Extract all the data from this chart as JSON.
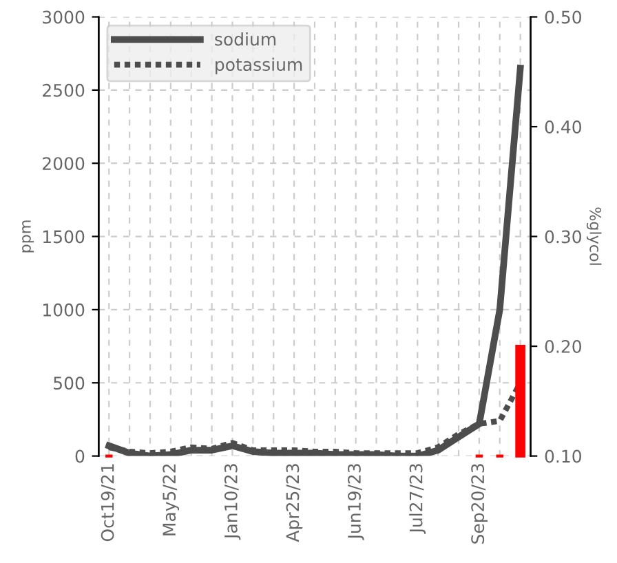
{
  "chart_data": {
    "type": "line",
    "ylabel": "ppm",
    "y2label": "%glycol",
    "categories": [
      "Oct19/21",
      null,
      null,
      "May5/22",
      null,
      null,
      "Jan10/23",
      null,
      null,
      "Apr25/23",
      null,
      null,
      "Jun19/23",
      null,
      null,
      "Jul27/23",
      null,
      null,
      "Sep20/23",
      null,
      null
    ],
    "series": [
      {
        "name": "sodium",
        "color": "#4d4d4d",
        "line_style": "solid",
        "values": [
          70,
          20,
          0,
          10,
          40,
          40,
          70,
          30,
          20,
          20,
          20,
          10,
          10,
          10,
          0,
          0,
          40,
          130,
          220,
          1000,
          2650
        ]
      },
      {
        "name": "potassium",
        "color": "#4d4d4d",
        "line_style": "dotted",
        "values": [
          60,
          30,
          20,
          30,
          60,
          50,
          90,
          40,
          40,
          40,
          30,
          30,
          20,
          20,
          20,
          20,
          60,
          150,
          220,
          240,
          500
        ]
      },
      {
        "type": "bar",
        "axis": "y2",
        "color": "#ff0000",
        "values": [
          0.1,
          null,
          null,
          null,
          null,
          null,
          null,
          null,
          null,
          null,
          null,
          null,
          null,
          null,
          null,
          null,
          null,
          null,
          0.1,
          0.1,
          0.2
        ]
      }
    ],
    "ylim": [
      0,
      3000
    ],
    "yticks": [
      0,
      500,
      1000,
      1500,
      2000,
      2500,
      3000
    ],
    "y2lim": [
      0.1,
      0.5
    ],
    "y2ticks": [
      {
        "value": 0.1,
        "label": "0.10"
      },
      {
        "value": 0.2,
        "label": "0.20"
      },
      {
        "value": 0.3,
        "label": "0.30"
      },
      {
        "value": 0.4,
        "label": "0.40"
      },
      {
        "value": 0.5,
        "label": "0.50"
      }
    ],
    "grid": true,
    "legend": "top left"
  }
}
